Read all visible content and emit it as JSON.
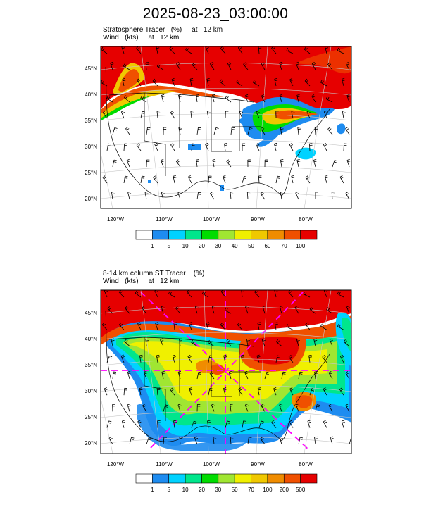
{
  "title": "2025-08-23_03:00:00",
  "panels": [
    {
      "id": "top",
      "subtitle_line1": "Stratosphere Tracer   (%)     at   12 km",
      "subtitle_line2": "Wind   (kts)     at   12 km",
      "lat_labels": [
        "45°N",
        "40°N",
        "35°N",
        "30°N",
        "25°N",
        "20°N"
      ],
      "lon_labels": [
        "120°W",
        "110°W",
        "100°W",
        "90°W",
        "80°W"
      ],
      "colorbar_labels": [
        "1",
        "5",
        "10",
        "20",
        "30",
        "40",
        "50",
        "60",
        "70",
        "100"
      ],
      "colorbar_colors": [
        "#ffffff",
        "#1e8cf0",
        "#00d2ff",
        "#00e68c",
        "#00dc00",
        "#a0e632",
        "#f0f000",
        "#f0c800",
        "#f08c00",
        "#f05000",
        "#e60000"
      ]
    },
    {
      "id": "bottom",
      "subtitle_line1": "8-14 km column ST Tracer    (%)",
      "subtitle_line2": "Wind   (kts)     at   12 km",
      "lat_labels": [
        "45°N",
        "40°N",
        "35°N",
        "30°N",
        "25°N",
        "20°N"
      ],
      "lon_labels": [
        "120°W",
        "110°W",
        "100°W",
        "90°W",
        "80°W"
      ],
      "colorbar_labels": [
        "1",
        "5",
        "10",
        "20",
        "30",
        "50",
        "70",
        "100",
        "200",
        "500"
      ],
      "colorbar_colors": [
        "#ffffff",
        "#1e8cf0",
        "#00d2ff",
        "#00e68c",
        "#00dc00",
        "#a0e632",
        "#f0f000",
        "#f0c800",
        "#f08c00",
        "#f05000",
        "#e60000"
      ]
    }
  ]
}
